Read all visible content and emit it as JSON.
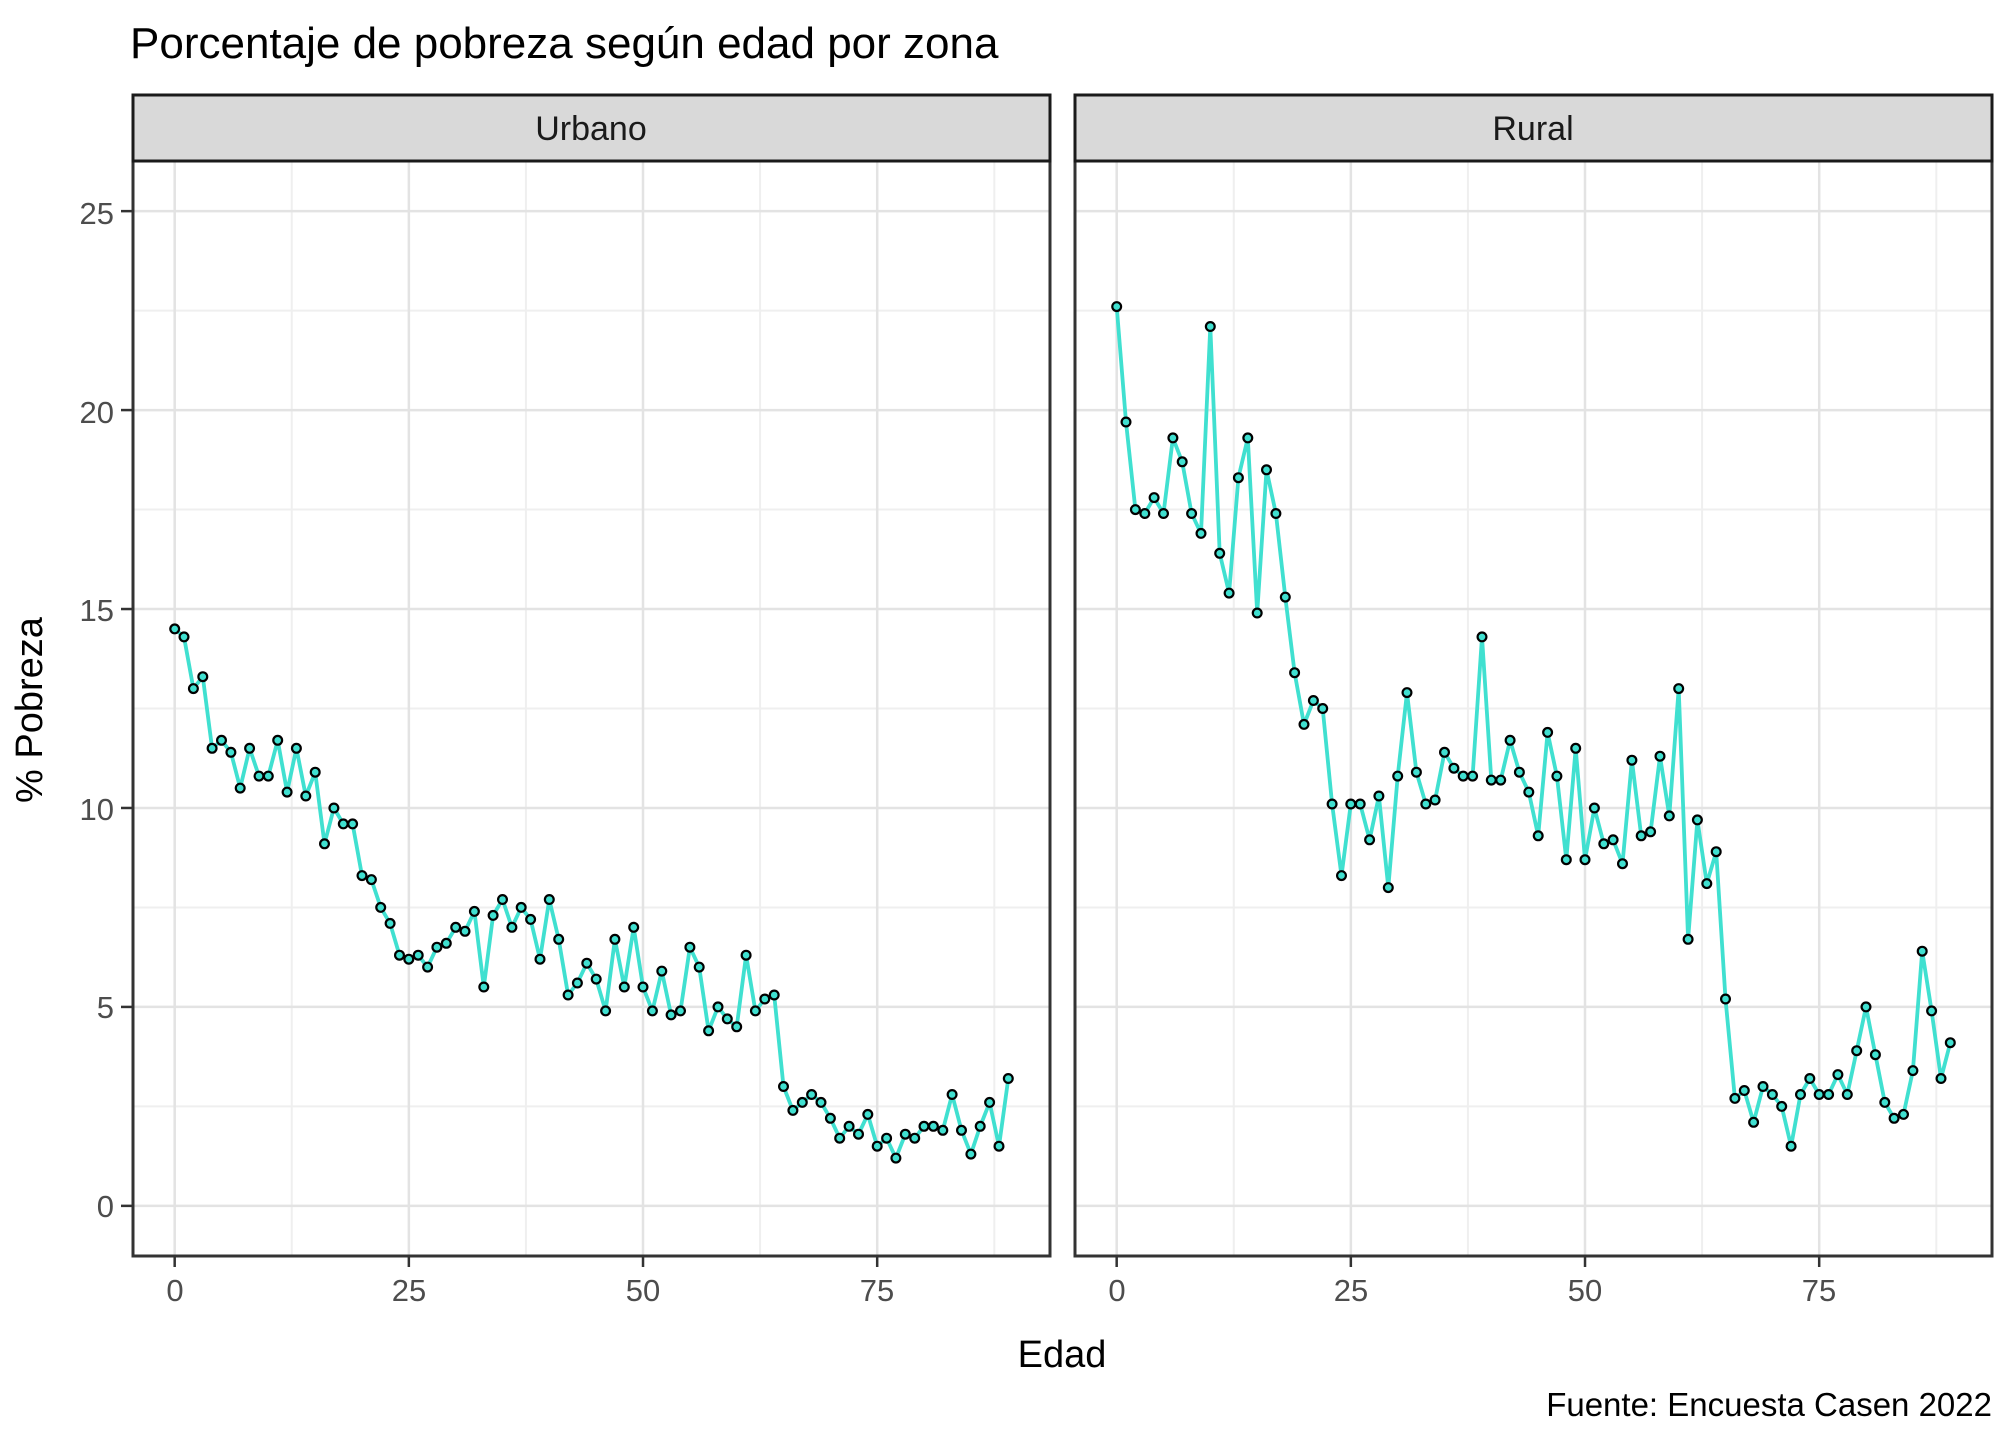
{
  "title": "Porcentaje de pobreza según edad por zona",
  "caption": "Fuente: Encuesta Casen 2022",
  "chart_data": {
    "type": "line",
    "title": "Porcentaje de pobreza según edad por zona",
    "xlabel": "Edad",
    "ylabel": "% Pobreza",
    "caption": "Fuente: Encuesta Casen 2022",
    "legend_position": "none",
    "grid": true,
    "x_ticks": [
      0,
      25,
      50,
      75
    ],
    "y_ticks": [
      0,
      5,
      10,
      15,
      20,
      25
    ],
    "x_minor_ticks": [
      12.5,
      37.5,
      62.5,
      87.5
    ],
    "y_minor_ticks": [
      2.5,
      7.5,
      12.5,
      17.5,
      22.5
    ],
    "xlim": [
      -4.45,
      93.45
    ],
    "ylim": [
      -1.26,
      26.26
    ],
    "colors": {
      "line": "#40E0D0",
      "point_fill": "#40E0D0",
      "point_stroke": "#000000",
      "strip_background": "#D9D9D9",
      "strip_border": "#1A1A1A",
      "panel_border": "#333333",
      "grid_major": "#E3E3E3",
      "grid_minor": "#EFEFEF",
      "tick_label": "#4D4D4D"
    },
    "facets": [
      {
        "label": "Urbano",
        "x": [
          0,
          1,
          2,
          3,
          4,
          5,
          6,
          7,
          8,
          9,
          10,
          11,
          12,
          13,
          14,
          15,
          16,
          17,
          18,
          19,
          20,
          21,
          22,
          23,
          24,
          25,
          26,
          27,
          28,
          29,
          30,
          31,
          32,
          33,
          34,
          35,
          36,
          37,
          38,
          39,
          40,
          41,
          42,
          43,
          44,
          45,
          46,
          47,
          48,
          49,
          50,
          51,
          52,
          53,
          54,
          55,
          56,
          57,
          58,
          59,
          60,
          61,
          62,
          63,
          64,
          65,
          66,
          67,
          68,
          69,
          70,
          71,
          72,
          73,
          74,
          75,
          76,
          77,
          78,
          79,
          80,
          81,
          82,
          83,
          84,
          85,
          86,
          87,
          88,
          89
        ],
        "values": [
          14.5,
          14.3,
          13.0,
          13.3,
          11.5,
          11.7,
          11.4,
          10.5,
          11.5,
          10.8,
          10.8,
          11.7,
          10.4,
          11.5,
          10.3,
          10.9,
          9.1,
          10.0,
          9.6,
          9.6,
          8.3,
          8.2,
          7.5,
          7.1,
          6.3,
          6.2,
          6.3,
          6.0,
          6.5,
          6.6,
          7.0,
          6.9,
          7.4,
          5.5,
          7.3,
          7.7,
          7.0,
          7.5,
          7.2,
          6.2,
          7.7,
          6.7,
          5.3,
          5.6,
          6.1,
          5.7,
          4.9,
          6.7,
          5.5,
          7.0,
          5.5,
          4.9,
          5.9,
          4.8,
          4.9,
          6.5,
          6.0,
          4.4,
          5.0,
          4.7,
          4.5,
          6.3,
          4.9,
          5.2,
          5.3,
          3.0,
          2.4,
          2.6,
          2.8,
          2.6,
          2.2,
          1.7,
          2.0,
          1.8,
          2.3,
          1.5,
          1.7,
          1.2,
          1.8,
          1.7,
          2.0,
          2.0,
          1.9,
          2.8,
          1.9,
          1.3,
          2.0,
          2.6,
          1.5,
          3.2
        ]
      },
      {
        "label": "Rural",
        "x": [
          0,
          1,
          2,
          3,
          4,
          5,
          6,
          7,
          8,
          9,
          10,
          11,
          12,
          13,
          14,
          15,
          16,
          17,
          18,
          19,
          20,
          21,
          22,
          23,
          24,
          25,
          26,
          27,
          28,
          29,
          30,
          31,
          32,
          33,
          34,
          35,
          36,
          37,
          38,
          39,
          40,
          41,
          42,
          43,
          44,
          45,
          46,
          47,
          48,
          49,
          50,
          51,
          52,
          53,
          54,
          55,
          56,
          57,
          58,
          59,
          60,
          61,
          62,
          63,
          64,
          65,
          66,
          67,
          68,
          69,
          70,
          71,
          72,
          73,
          74,
          75,
          76,
          77,
          78,
          79,
          80,
          81,
          82,
          83,
          84,
          85,
          86,
          87,
          88,
          89
        ],
        "values": [
          22.6,
          19.7,
          17.5,
          17.4,
          17.8,
          17.4,
          19.3,
          18.7,
          17.4,
          16.9,
          22.1,
          16.4,
          15.4,
          18.3,
          19.3,
          14.9,
          18.5,
          17.4,
          15.3,
          13.4,
          12.1,
          12.7,
          12.5,
          10.1,
          8.3,
          10.1,
          10.1,
          9.2,
          10.3,
          8.0,
          10.8,
          12.9,
          10.9,
          10.1,
          10.2,
          11.4,
          11.0,
          10.8,
          10.8,
          14.3,
          10.7,
          10.7,
          11.7,
          10.9,
          10.4,
          9.3,
          11.9,
          10.8,
          8.7,
          11.5,
          8.7,
          10.0,
          9.1,
          9.2,
          8.6,
          11.2,
          9.3,
          9.4,
          11.3,
          9.8,
          13.0,
          6.7,
          9.7,
          8.1,
          8.9,
          5.2,
          2.7,
          2.9,
          2.1,
          3.0,
          2.8,
          2.5,
          1.5,
          2.8,
          3.2,
          2.8,
          2.8,
          3.3,
          2.8,
          3.9,
          5.0,
          3.8,
          2.6,
          2.2,
          2.3,
          3.4,
          6.4,
          4.9,
          3.2,
          4.1
        ]
      }
    ]
  }
}
